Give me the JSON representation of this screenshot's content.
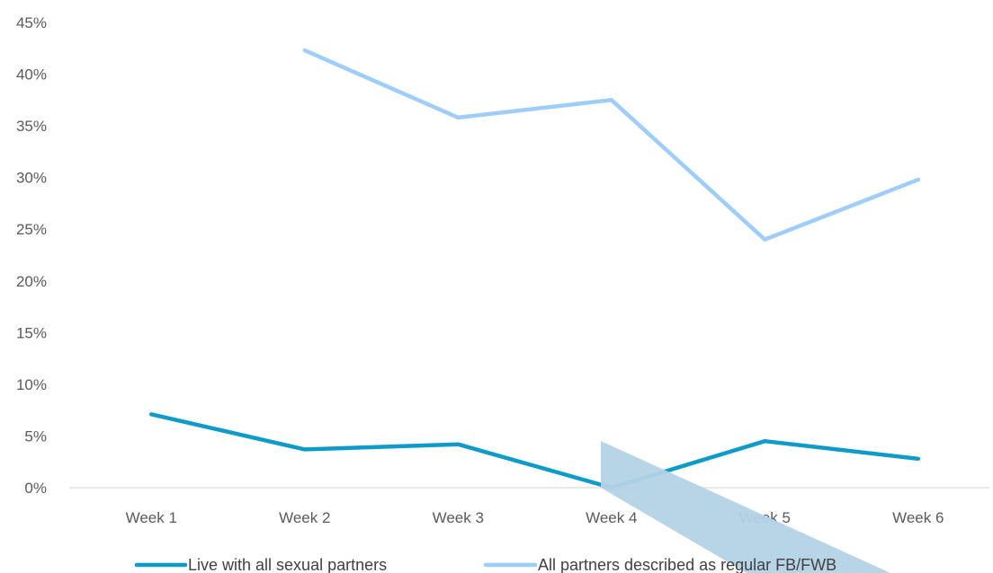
{
  "chart_data": {
    "type": "line",
    "categories": [
      "Week 1",
      "Week 2",
      "Week 3",
      "Week 4",
      "Week 5",
      "Week 6"
    ],
    "y_ticks": [
      "0%",
      "5%",
      "10%",
      "15%",
      "20%",
      "25%",
      "30%",
      "35%",
      "40%",
      "45%"
    ],
    "ylim": [
      0,
      45
    ],
    "grid": false,
    "legend_position": "bottom",
    "series": [
      {
        "name": "Live with all sexual partners",
        "color": "#0e9bc9",
        "values": [
          7.1,
          3.7,
          4.2,
          0.0,
          4.5,
          2.8
        ]
      },
      {
        "name": "All partners described as regular FB/FWB",
        "color": "#9ecdfa",
        "values": [
          null,
          42.3,
          35.8,
          37.5,
          24.0,
          29.8
        ]
      }
    ],
    "decoration": {
      "type": "arrow",
      "color": "#b4d2e6"
    }
  }
}
